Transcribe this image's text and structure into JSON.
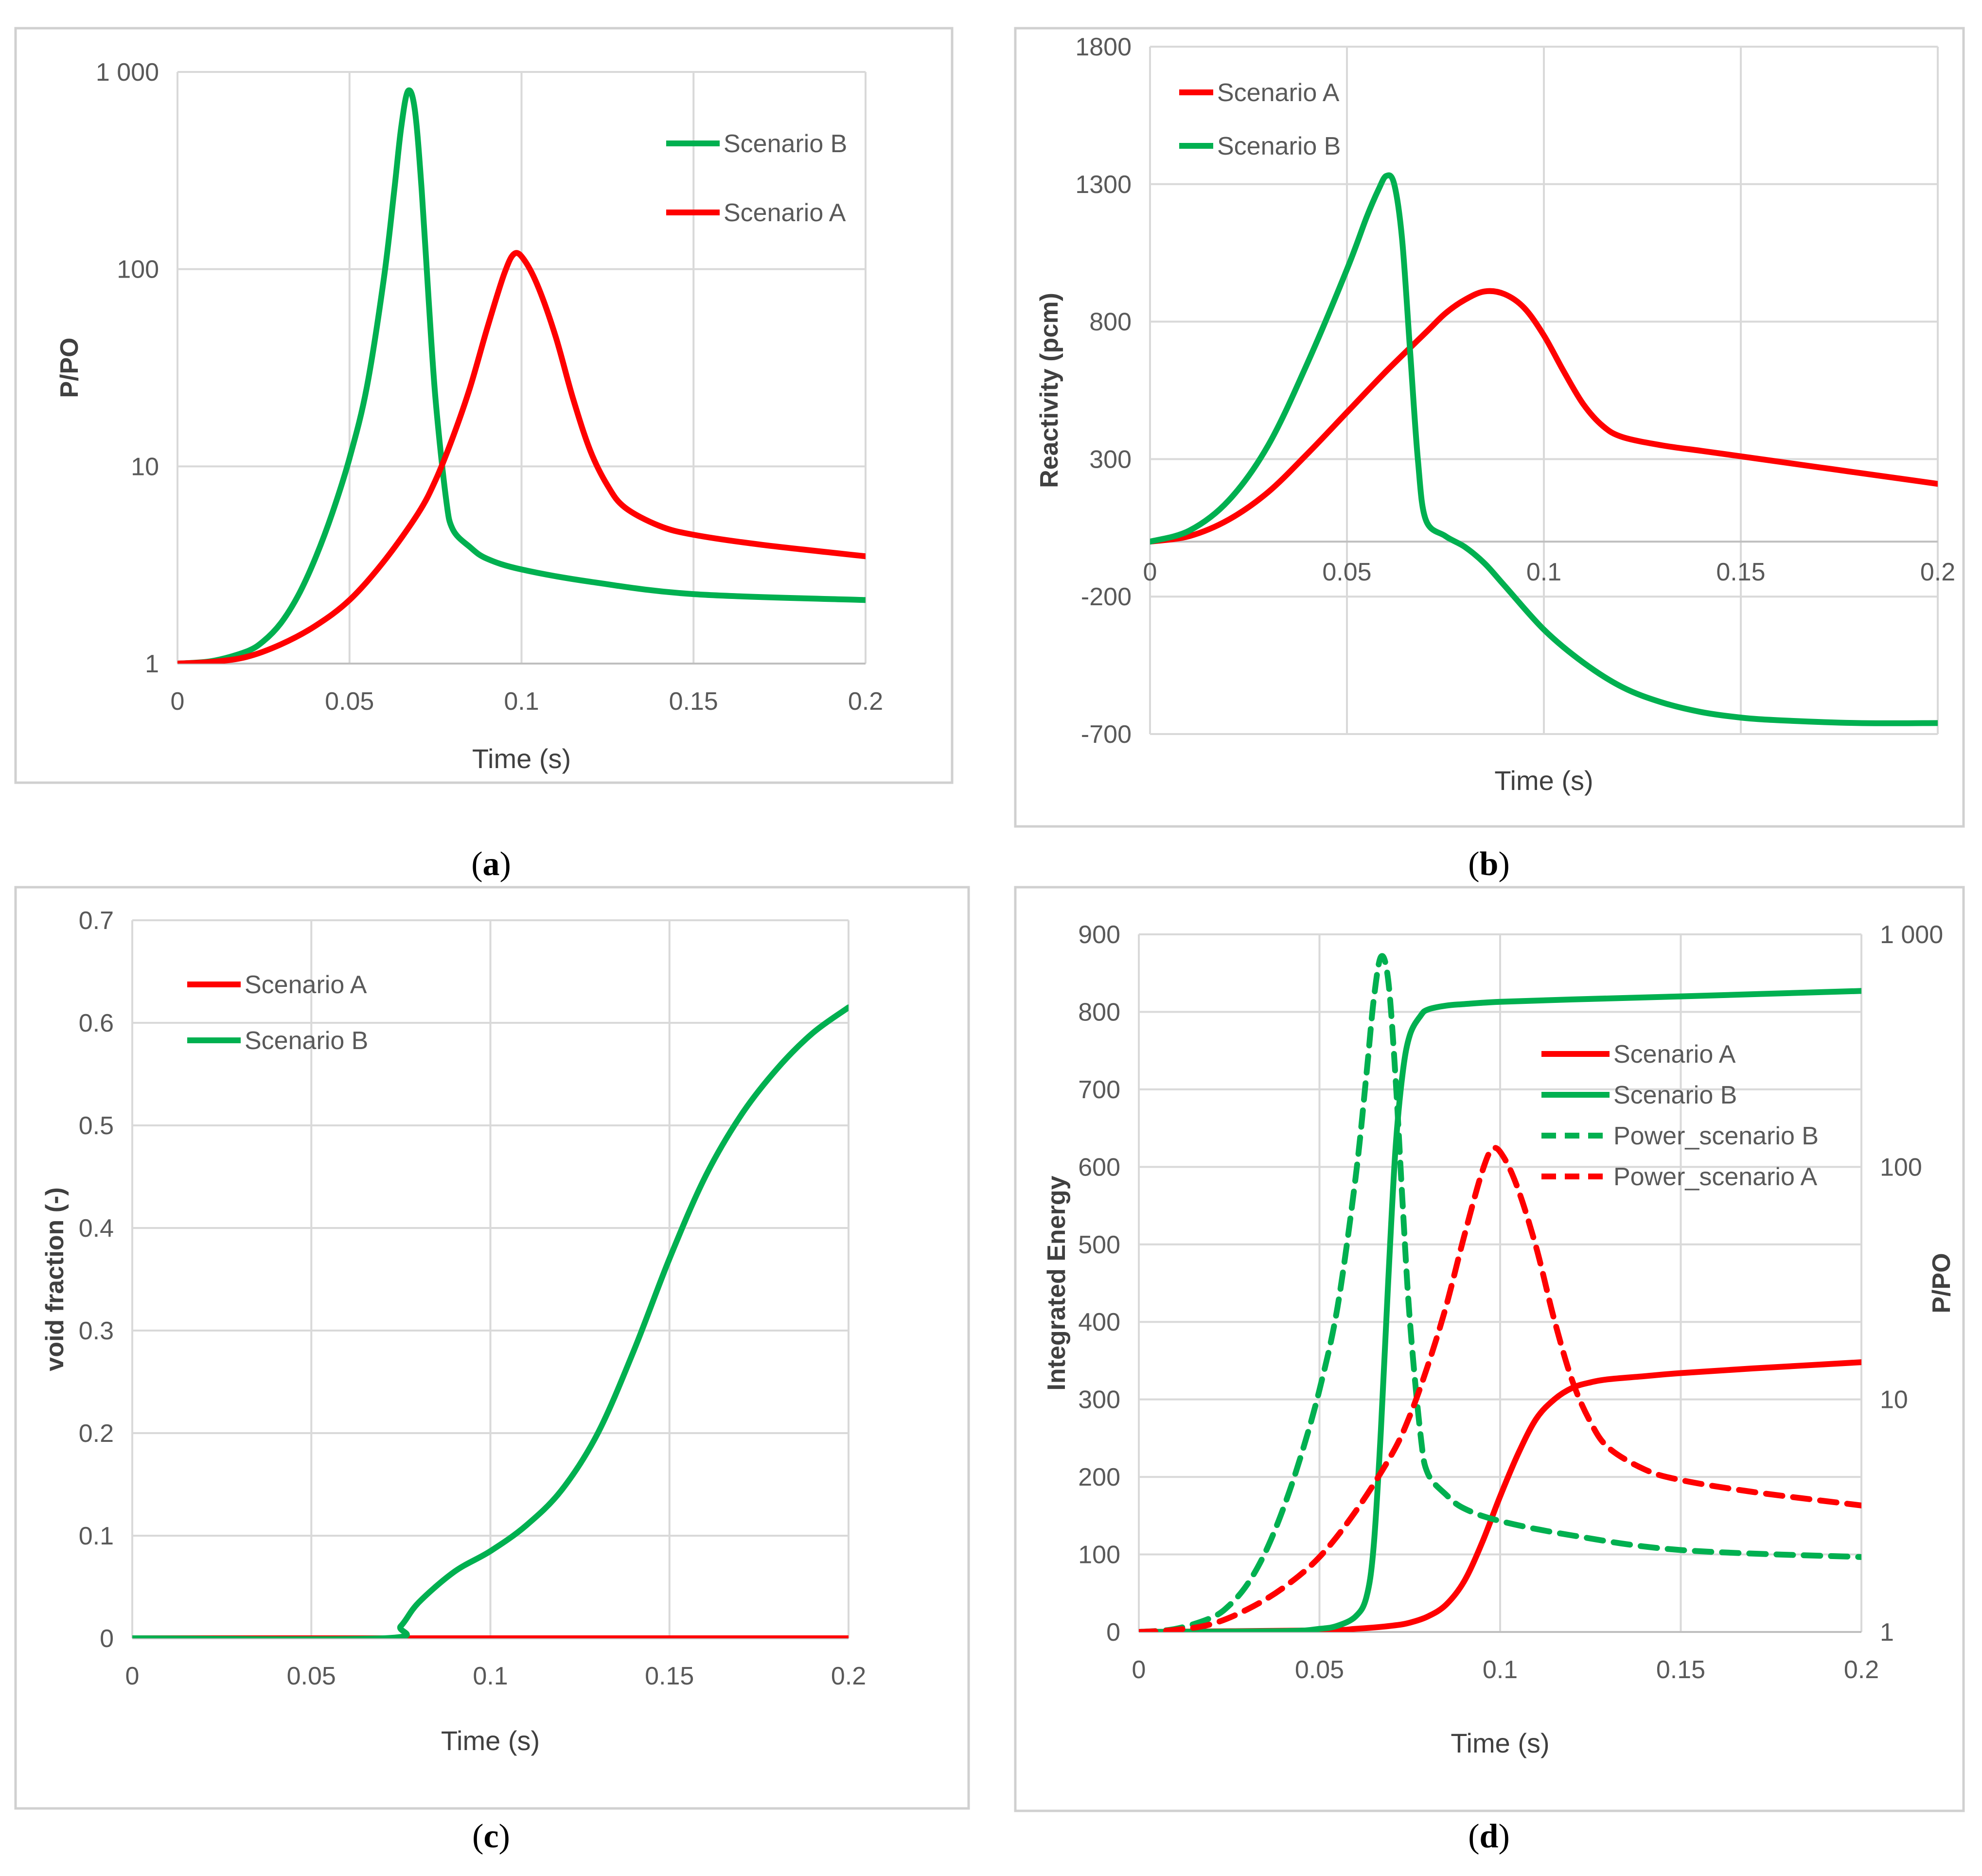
{
  "colors": {
    "scenario_a": "#ff0000",
    "scenario_b": "#00b050",
    "grid": "#d9d9d9",
    "frame": "#d0d0d0",
    "tick_text": "#595959",
    "label_text": "#404040"
  },
  "chart_data": [
    {
      "panel": "a",
      "caption": "(a)",
      "caption_letter": "a",
      "type": "line",
      "yscale": "log",
      "xlabel": "Time (s)",
      "ylabel": "P/PO",
      "xlim": [
        0,
        0.2
      ],
      "ylim": [
        1,
        1000
      ],
      "x_ticks": [
        "0",
        "0.05",
        "0.1",
        "0.15",
        "0.2"
      ],
      "y_ticks": [
        "1",
        "10",
        "100",
        "1 000"
      ],
      "legend_position": "top-right",
      "legend": [
        "Scenario B",
        "Scenario A"
      ],
      "series": [
        {
          "name": "Scenario B",
          "color_key": "scenario_b",
          "style": "solid",
          "x": [
            0,
            0.01,
            0.02,
            0.025,
            0.03,
            0.035,
            0.04,
            0.045,
            0.05,
            0.055,
            0.06,
            0.063,
            0.065,
            0.067,
            0.069,
            0.071,
            0.073,
            0.075,
            0.078,
            0.08,
            0.085,
            0.09,
            0.1,
            0.12,
            0.15,
            0.2
          ],
          "y": [
            1,
            1.03,
            1.15,
            1.3,
            1.6,
            2.2,
            3.4,
            5.8,
            11,
            25,
            90,
            250,
            520,
            800,
            640,
            250,
            70,
            22,
            7,
            4.8,
            3.9,
            3.4,
            3.0,
            2.6,
            2.25,
            2.1
          ]
        },
        {
          "name": "Scenario A",
          "color_key": "scenario_a",
          "style": "solid",
          "x": [
            0,
            0.01,
            0.02,
            0.03,
            0.04,
            0.05,
            0.06,
            0.07,
            0.075,
            0.08,
            0.085,
            0.09,
            0.095,
            0.098,
            0.101,
            0.105,
            0.11,
            0.115,
            0.12,
            0.125,
            0.13,
            0.14,
            0.15,
            0.17,
            0.2
          ],
          "y": [
            1,
            1.02,
            1.08,
            1.25,
            1.55,
            2.1,
            3.3,
            5.8,
            8.5,
            14,
            25,
            50,
            95,
            120,
            110,
            80,
            45,
            22,
            12,
            8,
            6.2,
            5,
            4.5,
            4.0,
            3.5
          ]
        }
      ]
    },
    {
      "panel": "b",
      "caption": "(b)",
      "caption_letter": "b",
      "type": "line",
      "yscale": "linear",
      "xlabel": "Time (s)",
      "ylabel": "Reactivity (pcm)",
      "xlim": [
        0,
        0.2
      ],
      "ylim": [
        -700,
        1800
      ],
      "x_ticks": [
        "0",
        "0.05",
        "0.1",
        "0.15",
        "0.2"
      ],
      "y_ticks": [
        "-700",
        "-200",
        "300",
        "800",
        "1300",
        "1800"
      ],
      "legend_position": "top-left",
      "legend": [
        "Scenario A",
        "Scenario B"
      ],
      "series": [
        {
          "name": "Scenario A",
          "color_key": "scenario_a",
          "style": "solid",
          "x": [
            0,
            0.01,
            0.02,
            0.03,
            0.04,
            0.05,
            0.06,
            0.07,
            0.075,
            0.08,
            0.085,
            0.09,
            0.095,
            0.1,
            0.105,
            0.11,
            0.115,
            0.12,
            0.13,
            0.14,
            0.15,
            0.16,
            0.17,
            0.18,
            0.2
          ],
          "y": [
            0,
            20,
            80,
            180,
            320,
            470,
            620,
            760,
            830,
            880,
            910,
            900,
            850,
            750,
            620,
            500,
            420,
            380,
            350,
            330,
            310,
            290,
            270,
            250,
            210
          ]
        },
        {
          "name": "Scenario B",
          "color_key": "scenario_b",
          "style": "solid",
          "x": [
            0,
            0.01,
            0.02,
            0.03,
            0.04,
            0.05,
            0.055,
            0.058,
            0.06,
            0.062,
            0.064,
            0.066,
            0.068,
            0.07,
            0.075,
            0.08,
            0.085,
            0.09,
            0.1,
            0.11,
            0.12,
            0.13,
            0.14,
            0.15,
            0.16,
            0.18,
            0.2
          ],
          "y": [
            0,
            40,
            150,
            350,
            650,
            990,
            1180,
            1280,
            1330,
            1300,
            1100,
            700,
            300,
            80,
            20,
            -20,
            -80,
            -160,
            -320,
            -440,
            -530,
            -585,
            -620,
            -640,
            -650,
            -660,
            -660
          ]
        }
      ]
    },
    {
      "panel": "c",
      "caption": "(c)",
      "caption_letter": "c",
      "type": "line",
      "yscale": "linear",
      "xlabel": "Time (s)",
      "ylabel": "void fraction (-)",
      "xlim": [
        0,
        0.2
      ],
      "ylim": [
        0,
        0.7
      ],
      "x_ticks": [
        "0",
        "0.05",
        "0.1",
        "0.15",
        "0.2"
      ],
      "y_ticks": [
        "0",
        "0.1",
        "0.2",
        "0.3",
        "0.4",
        "0.5",
        "0.6",
        "0.7"
      ],
      "legend_position": "top-left",
      "legend": [
        "Scenario A",
        "Scenario B"
      ],
      "series": [
        {
          "name": "Scenario A",
          "color_key": "scenario_a",
          "style": "solid",
          "x": [
            0,
            0.2
          ],
          "y": [
            0,
            0
          ]
        },
        {
          "name": "Scenario B",
          "color_key": "scenario_b",
          "style": "solid",
          "x": [
            0,
            0.07,
            0.075,
            0.08,
            0.09,
            0.1,
            0.11,
            0.12,
            0.13,
            0.14,
            0.15,
            0.16,
            0.17,
            0.18,
            0.19,
            0.2
          ],
          "y": [
            0,
            0,
            0.012,
            0.035,
            0.065,
            0.085,
            0.11,
            0.145,
            0.2,
            0.28,
            0.37,
            0.45,
            0.51,
            0.555,
            0.59,
            0.615
          ]
        }
      ]
    },
    {
      "panel": "d",
      "caption": "(d)",
      "caption_letter": "d",
      "type": "line",
      "yscale": "linear",
      "y2scale": "log",
      "xlabel": "Time (s)",
      "ylabel": "Integrated  Energy",
      "y2label": "P/PO",
      "xlim": [
        0,
        0.2
      ],
      "ylim": [
        0,
        900
      ],
      "y2lim": [
        1,
        1000
      ],
      "x_ticks": [
        "0",
        "0.05",
        "0.1",
        "0.15",
        "0.2"
      ],
      "y_ticks": [
        "0",
        "100",
        "200",
        "300",
        "400",
        "500",
        "600",
        "700",
        "800",
        "900"
      ],
      "y2_ticks": [
        "1",
        "10",
        "100",
        "1 000"
      ],
      "legend_position": "top-right",
      "legend": [
        "Scenario A",
        "Scenario B",
        "Power_scenario B",
        "Power_scenario A"
      ],
      "series": [
        {
          "name": "Scenario A",
          "color_key": "scenario_a",
          "style": "solid",
          "axis": "left",
          "x": [
            0,
            0.05,
            0.06,
            0.07,
            0.075,
            0.08,
            0.085,
            0.09,
            0.095,
            0.1,
            0.105,
            0.11,
            0.115,
            0.12,
            0.125,
            0.13,
            0.14,
            0.15,
            0.17,
            0.2
          ],
          "y": [
            0,
            2,
            4,
            8,
            12,
            20,
            35,
            65,
            115,
            175,
            230,
            275,
            300,
            315,
            322,
            326,
            330,
            334,
            340,
            348
          ]
        },
        {
          "name": "Scenario B",
          "color_key": "scenario_b",
          "style": "solid",
          "axis": "left",
          "x": [
            0,
            0.04,
            0.05,
            0.055,
            0.06,
            0.063,
            0.065,
            0.067,
            0.069,
            0.071,
            0.073,
            0.075,
            0.078,
            0.08,
            0.085,
            0.09,
            0.1,
            0.12,
            0.15,
            0.2
          ],
          "y": [
            0,
            1,
            4,
            8,
            20,
            45,
            110,
            260,
            450,
            620,
            720,
            770,
            795,
            803,
            808,
            810,
            813,
            816,
            820,
            827
          ]
        },
        {
          "name": "Power_scenario B",
          "color_key": "scenario_b",
          "style": "dashed",
          "axis": "right",
          "x": [
            0,
            0.01,
            0.02,
            0.025,
            0.03,
            0.035,
            0.04,
            0.045,
            0.05,
            0.055,
            0.06,
            0.063,
            0.065,
            0.067,
            0.069,
            0.071,
            0.073,
            0.075,
            0.078,
            0.08,
            0.085,
            0.09,
            0.1,
            0.12,
            0.15,
            0.2
          ],
          "y": [
            1,
            1.03,
            1.15,
            1.3,
            1.6,
            2.2,
            3.4,
            5.8,
            11,
            25,
            90,
            250,
            520,
            800,
            640,
            250,
            70,
            22,
            7,
            4.8,
            3.9,
            3.4,
            3.0,
            2.6,
            2.25,
            2.1
          ]
        },
        {
          "name": "Power_scenario A",
          "color_key": "scenario_a",
          "style": "dashed",
          "axis": "right",
          "x": [
            0,
            0.01,
            0.02,
            0.03,
            0.04,
            0.05,
            0.06,
            0.07,
            0.075,
            0.08,
            0.085,
            0.09,
            0.095,
            0.098,
            0.101,
            0.105,
            0.11,
            0.115,
            0.12,
            0.125,
            0.13,
            0.14,
            0.15,
            0.17,
            0.2
          ],
          "y": [
            1,
            1.02,
            1.08,
            1.25,
            1.55,
            2.1,
            3.3,
            5.8,
            8.5,
            14,
            25,
            50,
            95,
            120,
            110,
            80,
            45,
            22,
            12,
            8,
            6.2,
            5,
            4.5,
            4.0,
            3.5
          ]
        }
      ]
    }
  ]
}
